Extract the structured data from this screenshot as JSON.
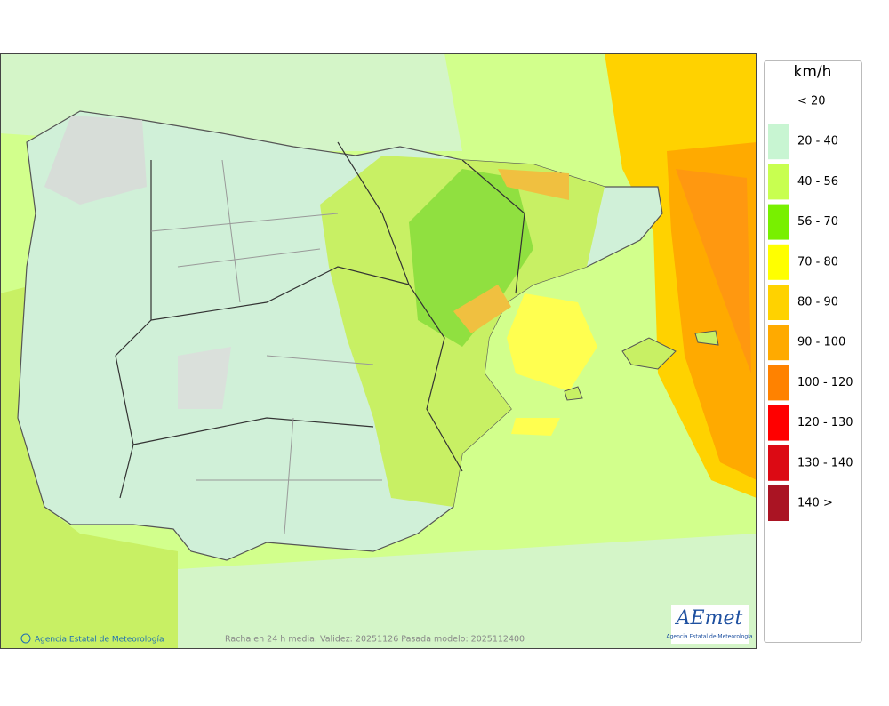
{
  "legend": {
    "title": "km/h",
    "items": [
      {
        "label": "< 20",
        "color": "#ffffff"
      },
      {
        "label": "20 - 40",
        "color": "#c8f5d2"
      },
      {
        "label": "40 - 56",
        "color": "#c8ff50"
      },
      {
        "label": "56 - 70",
        "color": "#78f000"
      },
      {
        "label": "70 - 80",
        "color": "#ffff00"
      },
      {
        "label": "80 - 90",
        "color": "#ffd200"
      },
      {
        "label": "90 - 100",
        "color": "#ffaa00"
      },
      {
        "label": "100 - 120",
        "color": "#ff8200"
      },
      {
        "label": "120 - 130",
        "color": "#ff0000"
      },
      {
        "label": "130 - 140",
        "color": "#dc0a14"
      },
      {
        "label": "140 >",
        "color": "#aa1423"
      }
    ]
  },
  "footer": {
    "credit": "Agencia Estatal de Meteorología",
    "caption": "Racha en 24 h media. Validez: 20251126 Pasada modelo: 2025112400"
  },
  "logo": {
    "name": "AEmet",
    "subtitle": "Agencia Estatal de Meteorología"
  }
}
